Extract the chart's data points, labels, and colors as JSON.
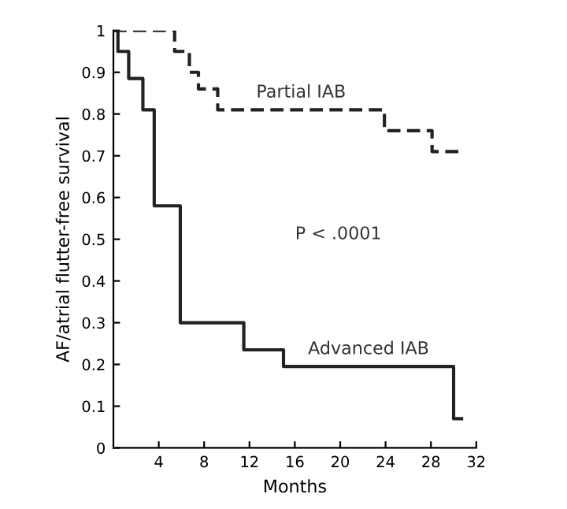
{
  "chart_data": {
    "type": "step",
    "xlabel": "Months",
    "ylabel": "AF/atrial flutter-free survival",
    "xlim": [
      0,
      32
    ],
    "ylim": [
      0,
      1
    ],
    "xticks": [
      4,
      8,
      12,
      16,
      20,
      24,
      28,
      32
    ],
    "yticks": [
      0,
      0.1,
      0.2,
      0.3,
      0.4,
      0.5,
      0.6,
      0.7,
      0.8,
      0.9,
      1
    ],
    "grid": false,
    "legend": false,
    "series": [
      {
        "name": "Partial IAB",
        "color": "#222222",
        "line_style": "dashed",
        "x": [
          0,
          5.4,
          6.7,
          7.5,
          9.2,
          23.9,
          28.1,
          30.7
        ],
        "values": [
          1,
          0.95,
          0.9,
          0.86,
          0.81,
          0.76,
          0.71,
          0.71
        ]
      },
      {
        "name": "Advanced IAB",
        "color": "#222222",
        "line_style": "solid",
        "x": [
          0,
          0.4,
          1.35,
          2.6,
          3.6,
          5.9,
          11.5,
          15,
          30.0,
          30.7
        ],
        "values": [
          1,
          0.95,
          0.885,
          0.81,
          0.58,
          0.3,
          0.235,
          0.195,
          0.07,
          0.07
        ]
      }
    ],
    "annotations": [
      "P < .0001"
    ]
  }
}
